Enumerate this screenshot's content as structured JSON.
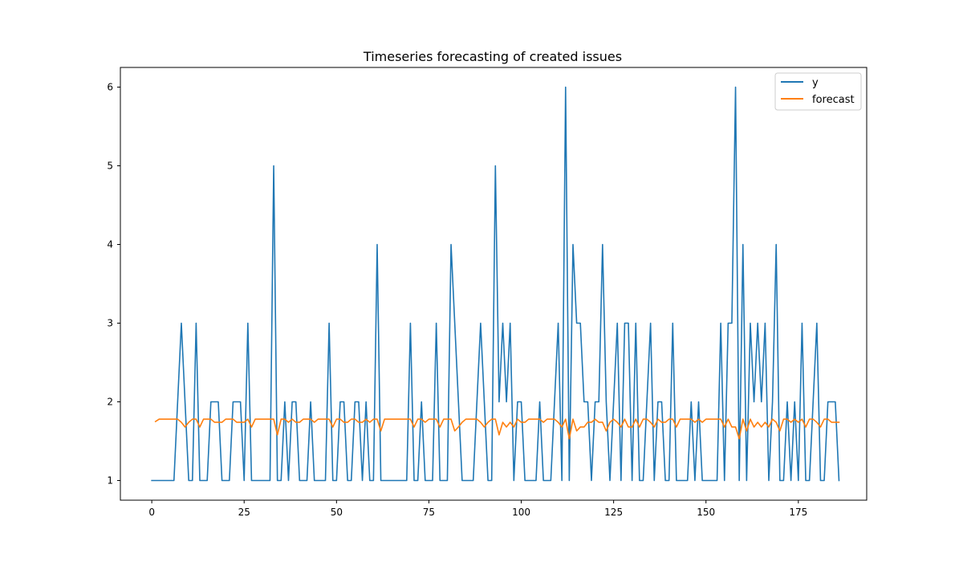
{
  "chart_data": {
    "type": "line",
    "title": "Timeseries forecasting of created issues",
    "xlabel": "",
    "ylabel": "",
    "xlim": [
      -8.5,
      193.5
    ],
    "ylim": [
      0.75,
      6.25
    ],
    "xticks": [
      0,
      25,
      50,
      75,
      100,
      125,
      150,
      175
    ],
    "yticks": [
      1,
      2,
      3,
      4,
      5,
      6
    ],
    "grid": false,
    "legend_position": "top-right",
    "series": [
      {
        "name": "y",
        "color": "#1f77b4",
        "x_start": 0,
        "values": [
          1,
          1,
          1,
          1,
          1,
          1,
          1,
          2,
          3,
          2,
          1,
          1,
          3,
          1,
          1,
          1,
          2,
          2,
          2,
          1,
          1,
          1,
          2,
          2,
          2,
          1,
          3,
          1,
          1,
          1,
          1,
          1,
          1,
          5,
          1,
          1,
          2,
          1,
          2,
          2,
          1,
          1,
          1,
          2,
          1,
          1,
          1,
          1,
          3,
          1,
          1,
          2,
          2,
          1,
          1,
          2,
          2,
          1,
          2,
          1,
          1,
          4,
          1,
          1,
          1,
          1,
          1,
          1,
          1,
          1,
          3,
          1,
          1,
          2,
          1,
          1,
          1,
          3,
          1,
          1,
          1,
          4,
          3,
          2,
          1,
          1,
          1,
          1,
          2,
          3,
          2,
          1,
          1,
          5,
          2,
          3,
          2,
          3,
          1,
          2,
          2,
          1,
          1,
          1,
          1,
          2,
          1,
          1,
          1,
          2,
          3,
          1,
          6,
          1,
          4,
          3,
          3,
          2,
          2,
          1,
          2,
          2,
          4,
          2,
          1,
          2,
          3,
          1,
          3,
          3,
          1,
          3,
          1,
          1,
          2,
          3,
          1,
          2,
          2,
          1,
          1,
          3,
          1,
          1,
          1,
          1,
          2,
          1,
          2,
          1,
          1,
          1,
          1,
          1,
          3,
          1,
          3,
          3,
          6,
          1,
          4,
          1,
          3,
          2,
          3,
          2,
          3,
          1,
          2,
          4,
          1,
          1,
          2,
          1,
          2,
          1,
          3,
          1,
          1,
          2,
          3,
          1,
          1,
          2,
          2,
          2,
          1
        ]
      },
      {
        "name": "forecast",
        "color": "#ff7f0e",
        "x_start": 1,
        "values": [
          1.75,
          1.78,
          1.78,
          1.78,
          1.78,
          1.78,
          1.78,
          1.74,
          1.68,
          1.74,
          1.78,
          1.78,
          1.68,
          1.78,
          1.78,
          1.78,
          1.74,
          1.74,
          1.74,
          1.78,
          1.78,
          1.78,
          1.74,
          1.74,
          1.74,
          1.78,
          1.68,
          1.78,
          1.78,
          1.78,
          1.78,
          1.78,
          1.78,
          1.58,
          1.78,
          1.78,
          1.74,
          1.78,
          1.74,
          1.74,
          1.78,
          1.78,
          1.78,
          1.74,
          1.78,
          1.78,
          1.78,
          1.78,
          1.68,
          1.78,
          1.78,
          1.74,
          1.74,
          1.78,
          1.78,
          1.74,
          1.74,
          1.78,
          1.74,
          1.78,
          1.78,
          1.63,
          1.78,
          1.78,
          1.78,
          1.78,
          1.78,
          1.78,
          1.78,
          1.78,
          1.68,
          1.78,
          1.78,
          1.74,
          1.78,
          1.78,
          1.78,
          1.68,
          1.78,
          1.78,
          1.78,
          1.63,
          1.68,
          1.74,
          1.78,
          1.78,
          1.78,
          1.78,
          1.74,
          1.68,
          1.74,
          1.78,
          1.78,
          1.58,
          1.74,
          1.68,
          1.74,
          1.68,
          1.78,
          1.74,
          1.74,
          1.78,
          1.78,
          1.78,
          1.78,
          1.74,
          1.78,
          1.78,
          1.78,
          1.74,
          1.68,
          1.78,
          1.53,
          1.78,
          1.63,
          1.68,
          1.68,
          1.74,
          1.74,
          1.78,
          1.74,
          1.74,
          1.63,
          1.74,
          1.78,
          1.74,
          1.68,
          1.78,
          1.68,
          1.68,
          1.78,
          1.68,
          1.78,
          1.78,
          1.74,
          1.68,
          1.78,
          1.74,
          1.74,
          1.78,
          1.78,
          1.68,
          1.78,
          1.78,
          1.78,
          1.78,
          1.74,
          1.78,
          1.74,
          1.78,
          1.78,
          1.78,
          1.78,
          1.78,
          1.68,
          1.78,
          1.68,
          1.68,
          1.53,
          1.78,
          1.63,
          1.78,
          1.68,
          1.74,
          1.68,
          1.74,
          1.68,
          1.78,
          1.74,
          1.63,
          1.78,
          1.78,
          1.74,
          1.78,
          1.74,
          1.78,
          1.68,
          1.78,
          1.78,
          1.74,
          1.68,
          1.78,
          1.78,
          1.74,
          1.74,
          1.74
        ]
      }
    ]
  }
}
